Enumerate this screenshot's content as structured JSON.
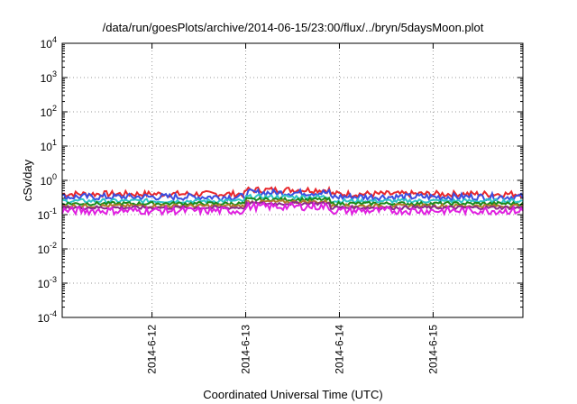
{
  "chart_data": {
    "type": "line",
    "title": "/data/run/goesPlots/archive/2014-06-15/23:00/flux/../bryn/5daysMoon.plot",
    "xlabel": "Coordinated Universal Time (UTC)",
    "ylabel": "cSv/day",
    "yscale": "log",
    "ylim_exp": [
      -4,
      4
    ],
    "y_tick_labels": [
      {
        "base": "10",
        "exp": "-4"
      },
      {
        "base": "10",
        "exp": "-3"
      },
      {
        "base": "10",
        "exp": "-2"
      },
      {
        "base": "10",
        "exp": "-1"
      },
      {
        "base": "10",
        "exp": "0"
      },
      {
        "base": "10",
        "exp": "1"
      },
      {
        "base": "10",
        "exp": "2"
      },
      {
        "base": "10",
        "exp": "3"
      },
      {
        "base": "10",
        "exp": "4"
      }
    ],
    "x_range_days": [
      "2014-06-11 01:00",
      "2014-06-15 23:00"
    ],
    "x_ticks": [
      "2014-6-12",
      "2014-6-13",
      "2014-6-14",
      "2014-6-15"
    ],
    "grid": true,
    "legend": "none",
    "series": [
      {
        "color": "#e8282c",
        "level": 0.4,
        "jitter": 0.18
      },
      {
        "color": "#3a4ee0",
        "level": 0.33,
        "jitter": 0.2
      },
      {
        "color": "#2ec3c8",
        "level": 0.25,
        "jitter": 0.12
      },
      {
        "color": "#1a8a1a",
        "level": 0.21,
        "jitter": 0.1
      },
      {
        "color": "#b27a2a",
        "level": 0.18,
        "jitter": 0.1
      },
      {
        "color": "#8a2b8a",
        "level": 0.16,
        "jitter": 0.1
      },
      {
        "color": "#e020e0",
        "level": 0.13,
        "jitter": 0.22
      }
    ]
  }
}
